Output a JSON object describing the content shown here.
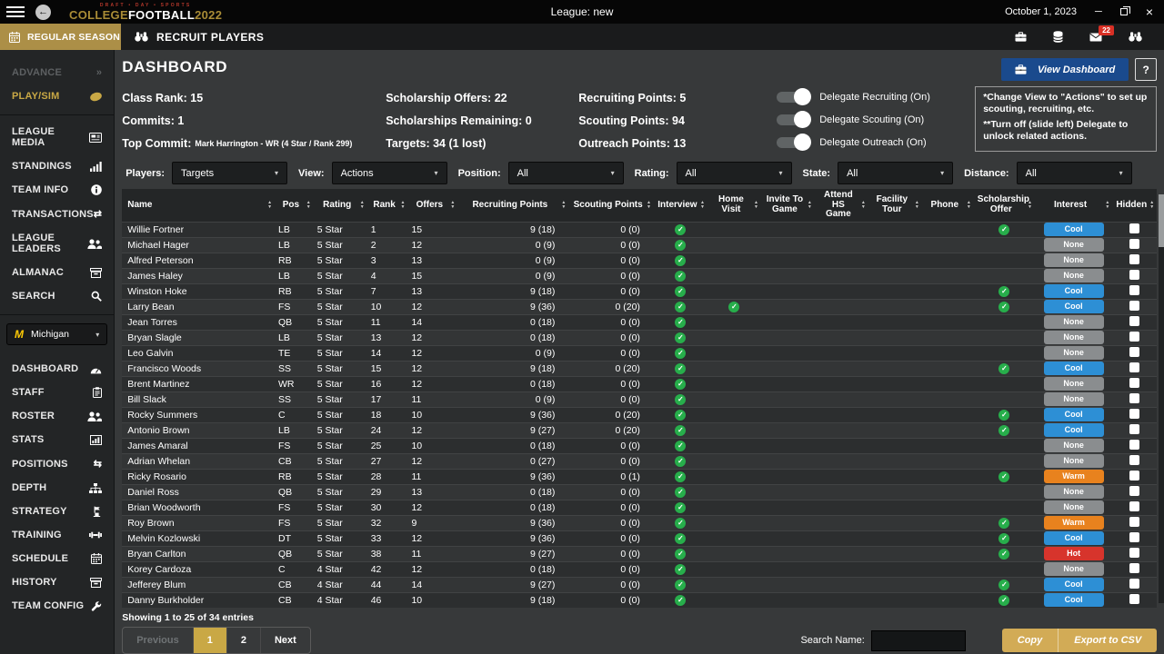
{
  "colors": {
    "gold": "#c9a845",
    "navy": "#1a4a8d",
    "check_green": "#27ae4b",
    "cool": "#2d8fd5",
    "none": "#8a8d8f",
    "warm": "#e8821e",
    "hot": "#d7342c",
    "badge_red": "#d93025"
  },
  "titlebar": {
    "logo_top": "DRAFT • DAY • SPORTS",
    "logo_college": "COLLEGE",
    "logo_football": "FOOTBALL",
    "logo_year": "2022",
    "league": "League: new",
    "date": "October 1, 2023"
  },
  "toolbar": {
    "season_tab": "REGULAR SEASON",
    "screen_title": "RECRUIT PLAYERS",
    "mail_badge": "22"
  },
  "sidebar": {
    "advance": "ADVANCE",
    "play_sim": "PLAY/SIM",
    "nav1": [
      {
        "label": "LEAGUE MEDIA",
        "icon": "newspaper-icon"
      },
      {
        "label": "STANDINGS",
        "icon": "bars-icon"
      },
      {
        "label": "TEAM INFO",
        "icon": "info-icon"
      },
      {
        "label": "TRANSACTIONS",
        "icon": "transfers-icon"
      },
      {
        "label": "LEAGUE LEADERS",
        "icon": "users-icon"
      },
      {
        "label": "ALMANAC",
        "icon": "archive-icon"
      },
      {
        "label": "SEARCH",
        "icon": "search-icon"
      }
    ],
    "team": "Michigan",
    "nav2": [
      {
        "label": "DASHBOARD",
        "icon": "gauge-icon"
      },
      {
        "label": "STAFF",
        "icon": "clipboard-icon"
      },
      {
        "label": "ROSTER",
        "icon": "users-icon"
      },
      {
        "label": "STATS",
        "icon": "chart-icon"
      },
      {
        "label": "POSITIONS",
        "icon": "swap-icon"
      },
      {
        "label": "DEPTH",
        "icon": "sitemap-icon"
      },
      {
        "label": "STRATEGY",
        "icon": "strategy-icon"
      },
      {
        "label": "TRAINING",
        "icon": "dumbbell-icon"
      },
      {
        "label": "SCHEDULE",
        "icon": "calendar-icon"
      },
      {
        "label": "HISTORY",
        "icon": "archive-icon"
      },
      {
        "label": "TEAM CONFIG",
        "icon": "wrench-icon"
      }
    ]
  },
  "dashboard": {
    "title": "DASHBOARD",
    "view_dashboard": "View Dashboard",
    "help": "?",
    "stat_columns": [
      [
        "Class Rank: 15",
        "Commits: 1",
        {
          "label": "Top Commit:",
          "sub": "Mark Harrington - WR (4 Star / Rank 299)"
        }
      ],
      [
        "Scholarship Offers: 22",
        "Scholarships Remaining: 0",
        "Targets: 34 (1 lost)"
      ],
      [
        "Recruiting Points: 5",
        "Scouting Points: 94",
        "Outreach Points: 13"
      ]
    ],
    "toggles": [
      "Delegate Recruiting (On)",
      "Delegate Scouting (On)",
      "Delegate Outreach (On)"
    ],
    "notes": [
      "*Change View to \"Actions\" to set up scouting, recruiting, etc.",
      "**Turn off (slide left) Delegate to unlock related actions."
    ]
  },
  "filters": [
    {
      "label": "Players:",
      "value": "Targets"
    },
    {
      "label": "View:",
      "value": "Actions"
    },
    {
      "label": "Position:",
      "value": "All"
    },
    {
      "label": "Rating:",
      "value": "All"
    },
    {
      "label": "State:",
      "value": "All"
    },
    {
      "label": "Distance:",
      "value": "All"
    }
  ],
  "table": {
    "columns": [
      {
        "label": "Name",
        "key": "name",
        "type": "text"
      },
      {
        "label": "Pos",
        "key": "pos",
        "type": "text"
      },
      {
        "label": "Rating",
        "key": "rating",
        "type": "text"
      },
      {
        "label": "Rank",
        "key": "rank",
        "type": "text"
      },
      {
        "label": "Offers",
        "key": "offers",
        "type": "text"
      },
      {
        "label": "Recruiting Points",
        "key": "recruiting_points",
        "type": "num"
      },
      {
        "label": "Scouting Points",
        "key": "scouting_points",
        "type": "num"
      },
      {
        "label": "Interview",
        "key": "interview",
        "type": "check"
      },
      {
        "label": "Home Visit",
        "key": "home_visit",
        "type": "check"
      },
      {
        "label": "Invite To Game",
        "key": "invite_to_game",
        "type": "check"
      },
      {
        "label": "Attend HS Game",
        "key": "attend_hs_game",
        "type": "check"
      },
      {
        "label": "Facility Tour",
        "key": "facility_tour",
        "type": "check"
      },
      {
        "label": "Phone",
        "key": "phone",
        "type": "check"
      },
      {
        "label": "Scholarship Offer",
        "key": "scholarship_offer",
        "type": "check"
      },
      {
        "label": "Interest",
        "key": "interest",
        "type": "badge"
      },
      {
        "label": "Hidden",
        "key": "hidden",
        "type": "checkbox"
      }
    ],
    "rows": [
      {
        "name": "Willie Fortner",
        "pos": "LB",
        "rating": "5 Star",
        "rank": "1",
        "offers": "15",
        "recruiting_points": "9 (18)",
        "scouting_points": "0 (0)",
        "interview": true,
        "home_visit": false,
        "invite_to_game": false,
        "attend_hs_game": false,
        "facility_tour": false,
        "phone": false,
        "scholarship_offer": true,
        "interest": "Cool",
        "hidden": false
      },
      {
        "name": "Michael Hager",
        "pos": "LB",
        "rating": "5 Star",
        "rank": "2",
        "offers": "12",
        "recruiting_points": "0 (9)",
        "scouting_points": "0 (0)",
        "interview": true,
        "home_visit": false,
        "invite_to_game": false,
        "attend_hs_game": false,
        "facility_tour": false,
        "phone": false,
        "scholarship_offer": false,
        "interest": "None",
        "hidden": false
      },
      {
        "name": "Alfred Peterson",
        "pos": "RB",
        "rating": "5 Star",
        "rank": "3",
        "offers": "13",
        "recruiting_points": "0 (9)",
        "scouting_points": "0 (0)",
        "interview": true,
        "home_visit": false,
        "invite_to_game": false,
        "attend_hs_game": false,
        "facility_tour": false,
        "phone": false,
        "scholarship_offer": false,
        "interest": "None",
        "hidden": false
      },
      {
        "name": "James Haley",
        "pos": "LB",
        "rating": "5 Star",
        "rank": "4",
        "offers": "15",
        "recruiting_points": "0 (9)",
        "scouting_points": "0 (0)",
        "interview": true,
        "home_visit": false,
        "invite_to_game": false,
        "attend_hs_game": false,
        "facility_tour": false,
        "phone": false,
        "scholarship_offer": false,
        "interest": "None",
        "hidden": false
      },
      {
        "name": "Winston Hoke",
        "pos": "RB",
        "rating": "5 Star",
        "rank": "7",
        "offers": "13",
        "recruiting_points": "9 (18)",
        "scouting_points": "0 (0)",
        "interview": true,
        "home_visit": false,
        "invite_to_game": false,
        "attend_hs_game": false,
        "facility_tour": false,
        "phone": false,
        "scholarship_offer": true,
        "interest": "Cool",
        "hidden": false
      },
      {
        "name": "Larry Bean",
        "pos": "FS",
        "rating": "5 Star",
        "rank": "10",
        "offers": "12",
        "recruiting_points": "9 (36)",
        "scouting_points": "0 (20)",
        "interview": true,
        "home_visit": true,
        "invite_to_game": false,
        "attend_hs_game": false,
        "facility_tour": false,
        "phone": false,
        "scholarship_offer": true,
        "interest": "Cool",
        "hidden": false
      },
      {
        "name": "Jean Torres",
        "pos": "QB",
        "rating": "5 Star",
        "rank": "11",
        "offers": "14",
        "recruiting_points": "0 (18)",
        "scouting_points": "0 (0)",
        "interview": true,
        "home_visit": false,
        "invite_to_game": false,
        "attend_hs_game": false,
        "facility_tour": false,
        "phone": false,
        "scholarship_offer": false,
        "interest": "None",
        "hidden": false
      },
      {
        "name": "Bryan Slagle",
        "pos": "LB",
        "rating": "5 Star",
        "rank": "13",
        "offers": "12",
        "recruiting_points": "0 (18)",
        "scouting_points": "0 (0)",
        "interview": true,
        "home_visit": false,
        "invite_to_game": false,
        "attend_hs_game": false,
        "facility_tour": false,
        "phone": false,
        "scholarship_offer": false,
        "interest": "None",
        "hidden": false
      },
      {
        "name": "Leo Galvin",
        "pos": "TE",
        "rating": "5 Star",
        "rank": "14",
        "offers": "12",
        "recruiting_points": "0 (9)",
        "scouting_points": "0 (0)",
        "interview": true,
        "home_visit": false,
        "invite_to_game": false,
        "attend_hs_game": false,
        "facility_tour": false,
        "phone": false,
        "scholarship_offer": false,
        "interest": "None",
        "hidden": false
      },
      {
        "name": "Francisco Woods",
        "pos": "SS",
        "rating": "5 Star",
        "rank": "15",
        "offers": "12",
        "recruiting_points": "9 (18)",
        "scouting_points": "0 (20)",
        "interview": true,
        "home_visit": false,
        "invite_to_game": false,
        "attend_hs_game": false,
        "facility_tour": false,
        "phone": false,
        "scholarship_offer": true,
        "interest": "Cool",
        "hidden": false
      },
      {
        "name": "Brent Martinez",
        "pos": "WR",
        "rating": "5 Star",
        "rank": "16",
        "offers": "12",
        "recruiting_points": "0 (18)",
        "scouting_points": "0 (0)",
        "interview": true,
        "home_visit": false,
        "invite_to_game": false,
        "attend_hs_game": false,
        "facility_tour": false,
        "phone": false,
        "scholarship_offer": false,
        "interest": "None",
        "hidden": false
      },
      {
        "name": "Bill Slack",
        "pos": "SS",
        "rating": "5 Star",
        "rank": "17",
        "offers": "11",
        "recruiting_points": "0 (9)",
        "scouting_points": "0 (0)",
        "interview": true,
        "home_visit": false,
        "invite_to_game": false,
        "attend_hs_game": false,
        "facility_tour": false,
        "phone": false,
        "scholarship_offer": false,
        "interest": "None",
        "hidden": false
      },
      {
        "name": "Rocky Summers",
        "pos": "C",
        "rating": "5 Star",
        "rank": "18",
        "offers": "10",
        "recruiting_points": "9 (36)",
        "scouting_points": "0 (20)",
        "interview": true,
        "home_visit": false,
        "invite_to_game": false,
        "attend_hs_game": false,
        "facility_tour": false,
        "phone": false,
        "scholarship_offer": true,
        "interest": "Cool",
        "hidden": false
      },
      {
        "name": "Antonio Brown",
        "pos": "LB",
        "rating": "5 Star",
        "rank": "24",
        "offers": "12",
        "recruiting_points": "9 (27)",
        "scouting_points": "0 (20)",
        "interview": true,
        "home_visit": false,
        "invite_to_game": false,
        "attend_hs_game": false,
        "facility_tour": false,
        "phone": false,
        "scholarship_offer": true,
        "interest": "Cool",
        "hidden": false
      },
      {
        "name": "James Amaral",
        "pos": "FS",
        "rating": "5 Star",
        "rank": "25",
        "offers": "10",
        "recruiting_points": "0 (18)",
        "scouting_points": "0 (0)",
        "interview": true,
        "home_visit": false,
        "invite_to_game": false,
        "attend_hs_game": false,
        "facility_tour": false,
        "phone": false,
        "scholarship_offer": false,
        "interest": "None",
        "hidden": false
      },
      {
        "name": "Adrian Whelan",
        "pos": "CB",
        "rating": "5 Star",
        "rank": "27",
        "offers": "12",
        "recruiting_points": "0 (27)",
        "scouting_points": "0 (0)",
        "interview": true,
        "home_visit": false,
        "invite_to_game": false,
        "attend_hs_game": false,
        "facility_tour": false,
        "phone": false,
        "scholarship_offer": false,
        "interest": "None",
        "hidden": false
      },
      {
        "name": "Ricky Rosario",
        "pos": "RB",
        "rating": "5 Star",
        "rank": "28",
        "offers": "11",
        "recruiting_points": "9 (36)",
        "scouting_points": "0 (1)",
        "interview": true,
        "home_visit": false,
        "invite_to_game": false,
        "attend_hs_game": false,
        "facility_tour": false,
        "phone": false,
        "scholarship_offer": true,
        "interest": "Warm",
        "hidden": false
      },
      {
        "name": "Daniel Ross",
        "pos": "QB",
        "rating": "5 Star",
        "rank": "29",
        "offers": "13",
        "recruiting_points": "0 (18)",
        "scouting_points": "0 (0)",
        "interview": true,
        "home_visit": false,
        "invite_to_game": false,
        "attend_hs_game": false,
        "facility_tour": false,
        "phone": false,
        "scholarship_offer": false,
        "interest": "None",
        "hidden": false
      },
      {
        "name": "Brian Woodworth",
        "pos": "FS",
        "rating": "5 Star",
        "rank": "30",
        "offers": "12",
        "recruiting_points": "0 (18)",
        "scouting_points": "0 (0)",
        "interview": true,
        "home_visit": false,
        "invite_to_game": false,
        "attend_hs_game": false,
        "facility_tour": false,
        "phone": false,
        "scholarship_offer": false,
        "interest": "None",
        "hidden": false
      },
      {
        "name": "Roy Brown",
        "pos": "FS",
        "rating": "5 Star",
        "rank": "32",
        "offers": "9",
        "recruiting_points": "9 (36)",
        "scouting_points": "0 (0)",
        "interview": true,
        "home_visit": false,
        "invite_to_game": false,
        "attend_hs_game": false,
        "facility_tour": false,
        "phone": false,
        "scholarship_offer": true,
        "interest": "Warm",
        "hidden": false
      },
      {
        "name": "Melvin Kozlowski",
        "pos": "DT",
        "rating": "5 Star",
        "rank": "33",
        "offers": "12",
        "recruiting_points": "9 (36)",
        "scouting_points": "0 (0)",
        "interview": true,
        "home_visit": false,
        "invite_to_game": false,
        "attend_hs_game": false,
        "facility_tour": false,
        "phone": false,
        "scholarship_offer": true,
        "interest": "Cool",
        "hidden": false
      },
      {
        "name": "Bryan Carlton",
        "pos": "QB",
        "rating": "5 Star",
        "rank": "38",
        "offers": "11",
        "recruiting_points": "9 (27)",
        "scouting_points": "0 (0)",
        "interview": true,
        "home_visit": false,
        "invite_to_game": false,
        "attend_hs_game": false,
        "facility_tour": false,
        "phone": false,
        "scholarship_offer": true,
        "interest": "Hot",
        "hidden": false
      },
      {
        "name": "Korey Cardoza",
        "pos": "C",
        "rating": "4 Star",
        "rank": "42",
        "offers": "12",
        "recruiting_points": "0 (18)",
        "scouting_points": "0 (0)",
        "interview": true,
        "home_visit": false,
        "invite_to_game": false,
        "attend_hs_game": false,
        "facility_tour": false,
        "phone": false,
        "scholarship_offer": false,
        "interest": "None",
        "hidden": false
      },
      {
        "name": "Jefferey Blum",
        "pos": "CB",
        "rating": "4 Star",
        "rank": "44",
        "offers": "14",
        "recruiting_points": "9 (27)",
        "scouting_points": "0 (0)",
        "interview": true,
        "home_visit": false,
        "invite_to_game": false,
        "attend_hs_game": false,
        "facility_tour": false,
        "phone": false,
        "scholarship_offer": true,
        "interest": "Cool",
        "hidden": false
      },
      {
        "name": "Danny Burkholder",
        "pos": "CB",
        "rating": "4 Star",
        "rank": "46",
        "offers": "10",
        "recruiting_points": "9 (18)",
        "scouting_points": "0 (0)",
        "interview": true,
        "home_visit": false,
        "invite_to_game": false,
        "attend_hs_game": false,
        "facility_tour": false,
        "phone": false,
        "scholarship_offer": true,
        "interest": "Cool",
        "hidden": false
      }
    ]
  },
  "footer": {
    "showing": "Showing 1 to 25 of 34 entries",
    "pages": [
      "Previous",
      "1",
      "2",
      "Next"
    ],
    "active_page": "1",
    "disabled_page": "Previous",
    "search_label": "Search Name:",
    "copy": "Copy",
    "export": "Export to CSV"
  }
}
